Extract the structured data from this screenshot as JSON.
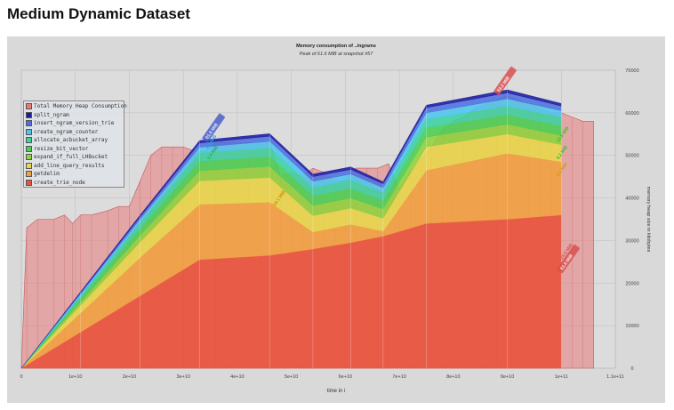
{
  "heading": "Medium Dynamic Dataset",
  "chart_data": {
    "type": "area",
    "title": "Memory consumption of ../ngrams",
    "subtitle": "Peak of 61.6 MiB at snapshot #57",
    "xlabel": "time in i",
    "ylabel": "memory heap size in kilobytes",
    "xlim": [
      0,
      110000000000
    ],
    "ylim": [
      0,
      70000
    ],
    "x_ticks": [
      "0",
      "1e+10",
      "2e+10",
      "3e+10",
      "4e+10",
      "5e+10",
      "6e+10",
      "7e+10",
      "8e+10",
      "9e+10",
      "1e+11",
      "1.1e+11"
    ],
    "y_ticks": [
      "0",
      "10000",
      "20000",
      "30000",
      "40000",
      "50000",
      "60000",
      "70000"
    ],
    "grid": true,
    "legend_position": "top-left",
    "x": [
      0,
      11000000000,
      22000000000,
      33000000000,
      46000000000,
      54000000000,
      61000000000,
      67000000000,
      75000000000,
      90000000000,
      100000000000
    ],
    "stacked_series": [
      {
        "name": "create_trie_node",
        "color": "#e8523a",
        "values": [
          0,
          8500,
          17000,
          25500,
          26500,
          28000,
          29500,
          31000,
          34000,
          35000,
          36000
        ]
      },
      {
        "name": "getdelim",
        "color": "#f0a040",
        "values": [
          0,
          4500,
          9000,
          13000,
          12500,
          4000,
          4300,
          1200,
          12500,
          15500,
          12500
        ]
      },
      {
        "name": "add_line_query_results",
        "color": "#e7d84a",
        "values": [
          0,
          1800,
          3600,
          5500,
          5800,
          3800,
          3800,
          3000,
          5500,
          4500,
          4000
        ]
      },
      {
        "name": "expand_if_full_LHBucket",
        "color": "#8fd23c",
        "values": [
          0,
          800,
          1600,
          2400,
          2600,
          2400,
          2400,
          2200,
          2300,
          2300,
          2200
        ]
      },
      {
        "name": "resize_bit_vector",
        "color": "#49cf52",
        "values": [
          0,
          800,
          1600,
          2200,
          2300,
          2300,
          2200,
          2000,
          2200,
          2200,
          2200
        ]
      },
      {
        "name": "allocate_acbucket_array",
        "color": "#3cd2a0",
        "values": [
          0,
          700,
          1400,
          2000,
          2100,
          2000,
          2000,
          1900,
          2000,
          2100,
          2100
        ]
      },
      {
        "name": "create_ngram_counter",
        "color": "#4cc6ee",
        "values": [
          0,
          400,
          800,
          1300,
          1500,
          1400,
          1400,
          1100,
          1500,
          1700,
          1500
        ]
      },
      {
        "name": "insert_ngram_version_trie",
        "color": "#4f6fe0",
        "values": [
          0,
          300,
          600,
          1000,
          1200,
          1100,
          1100,
          900,
          1200,
          1400,
          1100
        ]
      },
      {
        "name": "split_ngram",
        "color": "#1a1aa0",
        "values": [
          0,
          200,
          400,
          600,
          600,
          600,
          600,
          500,
          600,
          700,
          600
        ]
      }
    ],
    "total_series": {
      "name": "Total Memory Heap Consumption",
      "color": "#e87a7a",
      "x": [
        0,
        1000000000,
        3000000000,
        6000000000,
        8000000000,
        9500000000,
        11000000000,
        13000000000,
        16000000000,
        18000000000,
        20000000000,
        22000000000,
        24000000000,
        26000000000,
        28000000000,
        30000000000,
        32000000000,
        34000000000,
        36000000000,
        38000000000,
        40000000000,
        42000000000,
        44000000000,
        46000000000,
        48000000000,
        50000000000,
        52000000000,
        54000000000,
        56000000000,
        58000000000,
        60000000000,
        62000000000,
        64000000000,
        66000000000,
        68000000000,
        70000000000,
        72000000000,
        74000000000,
        76000000000,
        78000000000,
        80000000000,
        82000000000,
        84000000000,
        86000000000,
        88000000000,
        90000000000,
        92000000000,
        94000000000,
        96000000000,
        98000000000,
        100000000000,
        102000000000,
        104000000000,
        106000000000
      ],
      "values": [
        0,
        33000,
        35000,
        35000,
        36000,
        34000,
        36000,
        36000,
        37000,
        38000,
        38000,
        44000,
        50000,
        52000,
        52000,
        52000,
        51000,
        51000,
        53000,
        53000,
        53000,
        53000,
        53000,
        53000,
        45000,
        46000,
        45000,
        47000,
        46000,
        44000,
        44000,
        47000,
        47000,
        47000,
        48000,
        42000,
        46000,
        49000,
        52000,
        56000,
        58000,
        59000,
        61000,
        62000,
        63000,
        64000,
        63000,
        62000,
        61000,
        60000,
        60000,
        59000,
        58000,
        58000
      ]
    },
    "peak_labels": [
      "61.6 MiB",
      "53.2 MiB",
      "61.6 MiB"
    ],
    "series_annotations": [
      "2.5 MiB",
      "2.4 MiB",
      "18.1 MiB",
      "10.8 MiB",
      "8.2 MiB",
      "5.9 MiB",
      "23.5 MiB"
    ]
  }
}
